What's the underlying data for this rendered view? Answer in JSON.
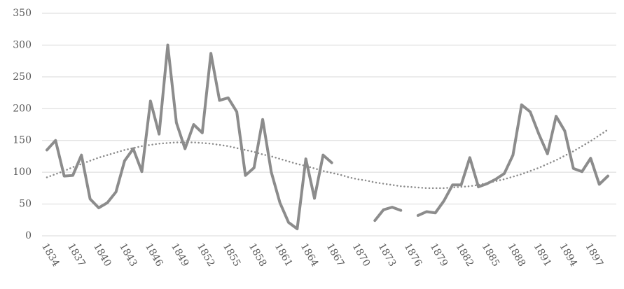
{
  "chart_data": {
    "type": "line",
    "categories": [
      "1834",
      null,
      null,
      "1837",
      null,
      null,
      "1840",
      null,
      null,
      "1843",
      null,
      null,
      "1846",
      null,
      null,
      "1849",
      null,
      null,
      "1852",
      null,
      null,
      "1855",
      null,
      null,
      "1858",
      null,
      null,
      "1861",
      null,
      null,
      "1864",
      null,
      null,
      "1867",
      null,
      null,
      "1870",
      null,
      null,
      "1873",
      null,
      null,
      "1876",
      null,
      null,
      "1879",
      null,
      null,
      "1882",
      null,
      null,
      "1885",
      null,
      null,
      "1888",
      null,
      null,
      "1891",
      null,
      null,
      "1894",
      null,
      null,
      "1897",
      null,
      null
    ],
    "series": [
      {
        "color": "#8c8c8c",
        "style": "solid",
        "values": [
          135,
          150,
          94,
          95,
          127,
          58,
          44,
          52,
          69,
          118,
          137,
          101,
          212,
          160,
          300,
          178,
          137,
          175,
          162,
          287,
          213,
          217,
          195,
          95,
          107,
          183,
          100,
          52,
          21,
          11,
          121,
          59,
          127,
          115,
          null,
          null,
          null,
          null,
          24,
          41,
          45,
          40,
          null,
          32,
          38,
          36,
          55,
          80,
          80,
          123,
          77,
          82,
          89,
          98,
          127,
          206,
          195,
          160,
          129,
          188,
          165,
          106,
          101,
          122,
          81,
          94
        ]
      },
      {
        "color": "#8c8c8c",
        "style": "dotted",
        "values": [
          92,
          97,
          102,
          108,
          113,
          118,
          123,
          127,
          131,
          135,
          138,
          141,
          143,
          145,
          146,
          147,
          147,
          147,
          146,
          145,
          143,
          141,
          138,
          135,
          132,
          128,
          125,
          121,
          117,
          113,
          110,
          106,
          102,
          99,
          96,
          92,
          89,
          87,
          84,
          82,
          80,
          78,
          77,
          76,
          75,
          75,
          75,
          76,
          77,
          78,
          80,
          83,
          86,
          89,
          93,
          97,
          102,
          107,
          113,
          119,
          126,
          133,
          141,
          149,
          158,
          167
        ]
      }
    ],
    "ylim": [
      0,
      350
    ],
    "yticks": [
      0,
      50,
      100,
      150,
      200,
      250,
      300,
      350
    ],
    "grid": true
  }
}
